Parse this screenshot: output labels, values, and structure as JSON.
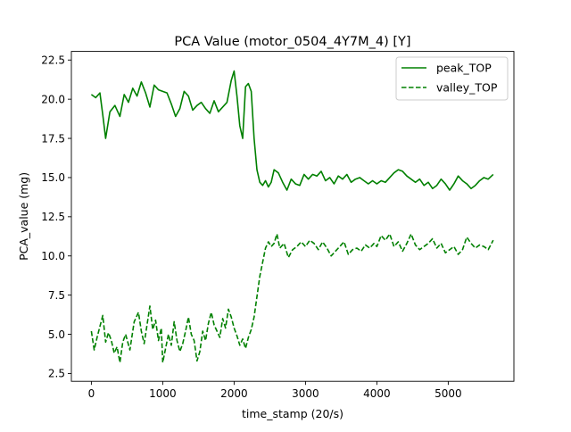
{
  "chart_data": {
    "type": "line",
    "title": "PCA Value (motor_0504_4Y7M_4) [Y]",
    "xlabel": "time_stamp (20/s)",
    "ylabel": "PCA_value (mg)",
    "xlim": [
      -280,
      5920
    ],
    "ylim": [
      2.0,
      23.05
    ],
    "xticks": [
      0,
      1000,
      2000,
      3000,
      4000,
      5000
    ],
    "xtick_labels": [
      "0",
      "1000",
      "2000",
      "3000",
      "4000",
      "5000"
    ],
    "yticks": [
      2.5,
      5.0,
      7.5,
      10.0,
      12.5,
      15.0,
      17.5,
      20.0,
      22.5
    ],
    "ytick_labels": [
      "2.5",
      "5.0",
      "7.5",
      "10.0",
      "12.5",
      "15.0",
      "17.5",
      "20.0",
      "22.5"
    ],
    "grid": false,
    "legend_position": "top-right",
    "color": "#008000",
    "series": [
      {
        "name": "peak_TOP",
        "style": "solid",
        "x": [
          0,
          60,
          120,
          160,
          200,
          260,
          330,
          400,
          460,
          520,
          580,
          640,
          700,
          760,
          820,
          880,
          940,
          1000,
          1060,
          1120,
          1180,
          1240,
          1300,
          1360,
          1420,
          1480,
          1540,
          1600,
          1660,
          1720,
          1780,
          1840,
          1900,
          1960,
          2000,
          2040,
          2080,
          2120,
          2160,
          2200,
          2240,
          2280,
          2320,
          2360,
          2400,
          2440,
          2480,
          2520,
          2560,
          2620,
          2680,
          2740,
          2800,
          2860,
          2920,
          2980,
          3040,
          3100,
          3160,
          3220,
          3280,
          3340,
          3400,
          3460,
          3520,
          3580,
          3640,
          3700,
          3760,
          3820,
          3880,
          3940,
          4000,
          4060,
          4120,
          4180,
          4240,
          4300,
          4360,
          4420,
          4480,
          4540,
          4600,
          4660,
          4720,
          4780,
          4840,
          4900,
          4960,
          5020,
          5080,
          5140,
          5200,
          5260,
          5320,
          5380,
          5440,
          5500,
          5560,
          5630
        ],
        "y": [
          20.3,
          20.1,
          20.4,
          19.0,
          17.5,
          19.2,
          19.6,
          18.9,
          20.3,
          19.8,
          20.7,
          20.2,
          21.1,
          20.4,
          19.5,
          20.9,
          20.6,
          20.5,
          20.4,
          19.7,
          18.9,
          19.4,
          20.5,
          20.2,
          19.3,
          19.6,
          19.8,
          19.4,
          19.1,
          19.9,
          19.2,
          19.5,
          19.8,
          21.2,
          21.8,
          20.2,
          18.3,
          17.5,
          20.8,
          21.0,
          20.5,
          17.5,
          15.5,
          14.7,
          14.5,
          14.8,
          14.4,
          14.7,
          15.5,
          15.3,
          14.7,
          14.2,
          14.9,
          14.6,
          14.5,
          15.2,
          14.9,
          15.2,
          15.1,
          15.4,
          14.8,
          15.0,
          14.6,
          15.1,
          14.9,
          15.2,
          14.7,
          14.9,
          15.0,
          14.8,
          14.6,
          14.8,
          14.6,
          14.8,
          14.7,
          15.0,
          15.3,
          15.5,
          15.4,
          15.1,
          14.9,
          14.7,
          14.9,
          14.5,
          14.7,
          14.3,
          14.5,
          14.9,
          14.6,
          14.2,
          14.6,
          15.1,
          14.8,
          14.6,
          14.3,
          14.5,
          14.8,
          15.0,
          14.9,
          15.2
        ]
      },
      {
        "name": "valley_TOP",
        "style": "dashed",
        "x": [
          0,
          40,
          80,
          120,
          160,
          200,
          240,
          280,
          320,
          360,
          400,
          440,
          480,
          540,
          600,
          660,
          700,
          740,
          780,
          820,
          860,
          900,
          940,
          980,
          1000,
          1040,
          1080,
          1120,
          1160,
          1200,
          1240,
          1280,
          1320,
          1360,
          1400,
          1440,
          1480,
          1520,
          1560,
          1600,
          1640,
          1680,
          1720,
          1760,
          1800,
          1840,
          1880,
          1920,
          1960,
          2000,
          2040,
          2080,
          2120,
          2160,
          2200,
          2240,
          2280,
          2320,
          2360,
          2400,
          2440,
          2480,
          2520,
          2560,
          2600,
          2640,
          2700,
          2760,
          2820,
          2880,
          2940,
          3000,
          3060,
          3120,
          3180,
          3240,
          3300,
          3360,
          3420,
          3480,
          3540,
          3600,
          3660,
          3720,
          3780,
          3840,
          3900,
          3960,
          4000,
          4060,
          4120,
          4180,
          4240,
          4300,
          4360,
          4420,
          4480,
          4540,
          4600,
          4660,
          4720,
          4780,
          4840,
          4900,
          4960,
          5020,
          5080,
          5140,
          5200,
          5260,
          5320,
          5380,
          5440,
          5500,
          5560,
          5630
        ],
        "y": [
          5.2,
          4.0,
          4.8,
          5.5,
          6.2,
          4.5,
          5.1,
          4.6,
          3.8,
          4.2,
          3.2,
          4.5,
          5.0,
          4.0,
          5.8,
          6.4,
          5.2,
          4.4,
          5.6,
          6.8,
          5.3,
          5.9,
          4.6,
          5.4,
          3.2,
          4.1,
          5.0,
          4.3,
          5.8,
          4.6,
          3.9,
          4.4,
          5.2,
          6.1,
          5.0,
          4.6,
          3.3,
          3.9,
          5.2,
          4.6,
          5.7,
          6.4,
          5.6,
          5.2,
          4.8,
          6.0,
          5.4,
          6.6,
          6.1,
          5.4,
          4.9,
          4.3,
          4.7,
          4.1,
          4.8,
          5.3,
          6.1,
          7.4,
          8.7,
          9.6,
          10.5,
          10.9,
          10.6,
          10.8,
          11.4,
          10.5,
          10.8,
          9.9,
          10.4,
          10.6,
          10.9,
          10.6,
          11.0,
          10.8,
          10.4,
          10.9,
          10.5,
          10.0,
          10.3,
          10.6,
          10.9,
          10.1,
          10.4,
          10.5,
          10.3,
          10.7,
          10.5,
          10.8,
          10.6,
          11.3,
          11.0,
          11.4,
          10.6,
          10.9,
          10.3,
          10.8,
          11.4,
          10.7,
          10.4,
          10.6,
          10.8,
          11.1,
          10.5,
          10.8,
          10.2,
          10.4,
          10.6,
          10.1,
          10.4,
          11.2,
          10.8,
          10.5,
          10.7,
          10.6,
          10.4,
          11.0
        ]
      }
    ]
  }
}
